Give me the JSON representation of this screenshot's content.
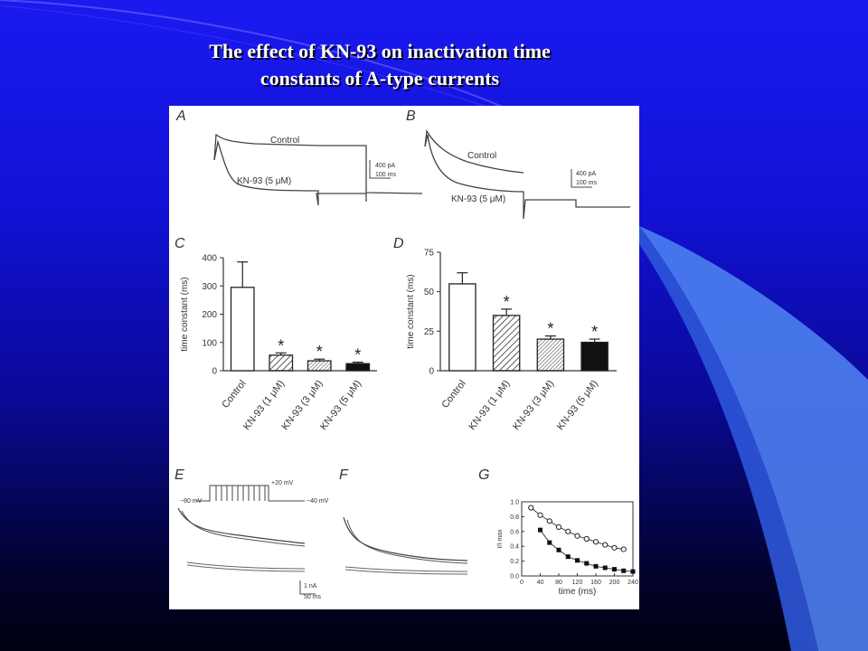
{
  "slide": {
    "title_line1": "The effect of KN-93 on inactivation time",
    "title_line2": "constants of A-type currents"
  },
  "panels": {
    "A": {
      "label": "A",
      "control_label": "Control",
      "drug_label": "KN-93 (5 μM)",
      "scale_current": "400 pA",
      "scale_time": "100 ms"
    },
    "B": {
      "label": "B",
      "control_label": "Control",
      "drug_label": "KN-93 (5 μM)",
      "scale_current": "400 pA",
      "scale_time": "100 ms"
    },
    "E": {
      "label": "E",
      "v_hold": "−80 mV",
      "v_step": "+20 mV",
      "v_test": "−40 mV",
      "scale_current": "1 nA",
      "scale_time": "50 ms"
    },
    "F": {
      "label": "F"
    },
    "star": "*"
  },
  "chart_data": [
    {
      "id": "C",
      "panel_label": "C",
      "type": "bar",
      "ylabel": "time constant (ms)",
      "ylim": [
        0,
        400
      ],
      "yticks": [
        0,
        100,
        200,
        300,
        400
      ],
      "categories": [
        "Control",
        "KN-93 (1 μM)",
        "KN-93 (3 μM)",
        "KN-93 (5 μM)"
      ],
      "values": [
        295,
        55,
        35,
        25
      ],
      "errors": [
        90,
        8,
        6,
        5
      ],
      "significant": [
        false,
        true,
        true,
        true
      ],
      "fills": [
        "open",
        "hatch",
        "crosshatch",
        "solid"
      ]
    },
    {
      "id": "D",
      "panel_label": "D",
      "type": "bar",
      "ylabel": "time constant (ms)",
      "ylim": [
        0,
        75
      ],
      "yticks": [
        0,
        25,
        50,
        75
      ],
      "categories": [
        "Control",
        "KN-93 (1 μM)",
        "KN-93 (3 μM)",
        "KN-93 (5 μM)"
      ],
      "values": [
        55,
        35,
        20,
        18
      ],
      "errors": [
        7,
        4,
        2,
        2
      ],
      "significant": [
        false,
        true,
        true,
        true
      ],
      "fills": [
        "open",
        "hatch",
        "crosshatch",
        "solid"
      ]
    },
    {
      "id": "G",
      "panel_label": "G",
      "type": "scatter",
      "xlabel": "time (ms)",
      "ylabel": "I/I max",
      "xlim": [
        0,
        240
      ],
      "ylim": [
        0,
        1.0
      ],
      "xticks": [
        0,
        40,
        80,
        120,
        160,
        200,
        240
      ],
      "yticks": [
        0.0,
        0.2,
        0.4,
        0.6,
        0.8,
        1.0
      ],
      "series": [
        {
          "marker": "open",
          "x": [
            20,
            40,
            60,
            80,
            100,
            120,
            140,
            160,
            180,
            200,
            220
          ],
          "y": [
            0.92,
            0.82,
            0.74,
            0.66,
            0.6,
            0.54,
            0.5,
            0.46,
            0.42,
            0.38,
            0.36
          ]
        },
        {
          "marker": "filled",
          "x": [
            40,
            60,
            80,
            100,
            120,
            140,
            160,
            180,
            200,
            220,
            240
          ],
          "y": [
            0.62,
            0.45,
            0.35,
            0.26,
            0.21,
            0.17,
            0.13,
            0.11,
            0.09,
            0.07,
            0.06
          ]
        }
      ]
    }
  ]
}
